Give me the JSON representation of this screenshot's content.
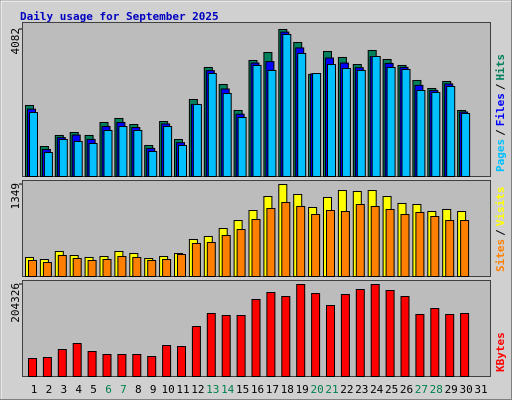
{
  "chart_data": [
    {
      "type": "bar",
      "title": "Daily usage for September 2025",
      "title_color": "#0000c0",
      "ylim": [
        0,
        4276
      ],
      "yticks": [
        4082
      ],
      "legend_separator": "/",
      "series": [
        {
          "name": "Hits",
          "color": "#00805c",
          "values": [
            1972,
            833,
            1139,
            1222,
            1139,
            1500,
            1611,
            1444,
            861,
            1527,
            1027,
            2138,
            3027,
            2555,
            1833,
            3221,
            3443,
            4082,
            3721,
            2833,
            3471,
            3305,
            3110,
            3499,
            3249,
            3083,
            2666,
            2444,
            2638,
            1833,
            null
          ]
        },
        {
          "name": "Files",
          "color": "#0000ff",
          "values": [
            1870,
            750,
            1080,
            1150,
            1030,
            1390,
            1500,
            1360,
            780,
            1460,
            940,
            2000,
            2940,
            2430,
            1730,
            3150,
            3190,
            4010,
            3570,
            2850,
            3290,
            3150,
            3020,
            3330,
            3140,
            3030,
            2530,
            2390,
            2570,
            1790,
            null
          ]
        },
        {
          "name": "Pages",
          "color": "#00c0ff",
          "values": [
            1777,
            666,
            1027,
            972,
            916,
            1277,
            1388,
            1277,
            694,
            1388,
            861,
            2000,
            2860,
            2305,
            1638,
            3083,
            2944,
            3943,
            3416,
            2860,
            3110,
            2999,
            2944,
            3332,
            3027,
            2971,
            2388,
            2333,
            2499,
            1749,
            null
          ]
        }
      ]
    },
    {
      "type": "bar",
      "ylim": [
        0,
        1408
      ],
      "yticks": [
        1349
      ],
      "legend_separator": "/",
      "series": [
        {
          "name": "Visits",
          "color": "#ffff00",
          "values": [
            279,
            249,
            367,
            308,
            279,
            293,
            367,
            337,
            264,
            293,
            337,
            543,
            587,
            704,
            821,
            968,
            1173,
            1349,
            1203,
            1012,
            1159,
            1261,
            1247,
            1261,
            1173,
            1071,
            1056,
            953,
            983,
            953,
            null
          ]
        },
        {
          "name": "Sites",
          "color": "#ff8000",
          "values": [
            235,
            205,
            308,
            264,
            235,
            249,
            293,
            279,
            235,
            249,
            323,
            484,
            499,
            601,
            689,
            836,
            997,
            1085,
            1027,
            909,
            968,
            953,
            1056,
            1027,
            983,
            909,
            939,
            880,
            821,
            821,
            null
          ]
        }
      ]
    },
    {
      "type": "bar",
      "ylim": [
        0,
        213208
      ],
      "yticks": [
        204326
      ],
      "categories": [
        "1",
        "2",
        "3",
        "4",
        "5",
        "6",
        "7",
        "8",
        "9",
        "10",
        "11",
        "12",
        "13",
        "14",
        "15",
        "16",
        "17",
        "18",
        "19",
        "20",
        "21",
        "22",
        "23",
        "24",
        "25",
        "26",
        "27",
        "28",
        "29",
        "30",
        "31"
      ],
      "category_colors": [
        "#000000",
        "#000000",
        "#000000",
        "#000000",
        "#000000",
        "#00804c",
        "#00804c",
        "#000000",
        "#000000",
        "#000000",
        "#000000",
        "#000000",
        "#00804c",
        "#00804c",
        "#000000",
        "#000000",
        "#000000",
        "#000000",
        "#000000",
        "#00804c",
        "#00804c",
        "#000000",
        "#000000",
        "#000000",
        "#000000",
        "#000000",
        "#00804c",
        "#00804c",
        "#000000",
        "#000000",
        "#000000"
      ],
      "series": [
        {
          "name": "KBytes",
          "color": "#ff0000",
          "values": [
            39978,
            42199,
            59967,
            73293,
            55525,
            48862,
            48862,
            48862,
            44420,
            68851,
            66630,
            111050,
            139923,
            135481,
            135481,
            171017,
            186564,
            177680,
            204326,
            184343,
            157691,
            182122,
            193227,
            204326,
            191006,
            177680,
            137702,
            151028,
            137702,
            139923,
            null
          ]
        }
      ]
    }
  ]
}
